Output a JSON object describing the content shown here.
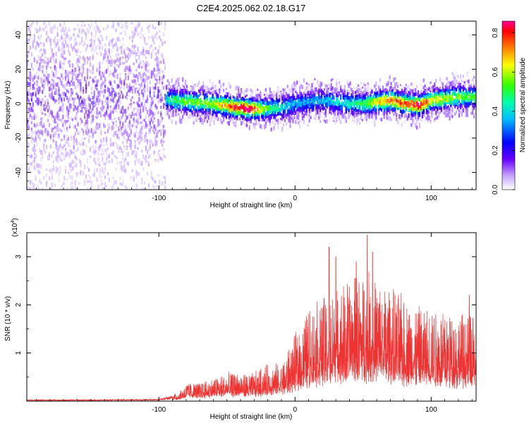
{
  "figure": {
    "title": "C2E4.2025.062.02.18.G17"
  },
  "chart_data": [
    {
      "type": "heatmap",
      "title": "C2E4.2025.062.02.18.G17",
      "xlabel": "Height of straight line (km)",
      "ylabel": "Frequency (Hz)",
      "xlim": [
        -197,
        133
      ],
      "ylim": [
        -50,
        48
      ],
      "xticks": [
        -100,
        0,
        100
      ],
      "yticks": [
        -40,
        -20,
        0,
        20,
        40
      ],
      "grid": false,
      "colorbar": {
        "label": "Normalized spectral amplitude",
        "range": [
          0,
          0.86
        ],
        "ticks": [
          "0.0",
          "0.2",
          "0.4",
          "0.6",
          "0.8"
        ],
        "colormap": [
          "#ffffff",
          "#6600ff",
          "#0000ff",
          "#00ffff",
          "#00ff00",
          "#ffff00",
          "#ff0000",
          "#ff0099"
        ]
      },
      "ridge": {
        "x": [
          -197,
          -150,
          -100,
          -90,
          -75,
          -60,
          -45,
          -35,
          -22,
          -10,
          0,
          10,
          20,
          30,
          40,
          50,
          60,
          70,
          80,
          90,
          100,
          110,
          120,
          133
        ],
        "y": [
          3,
          3,
          3,
          2,
          1,
          0,
          -2,
          -3,
          -3,
          -2,
          0,
          1,
          2,
          1,
          0,
          0,
          1,
          2,
          0,
          -1,
          2,
          3,
          4,
          4
        ],
        "peak_amplitude": [
          0.15,
          0.15,
          0.2,
          0.45,
          0.5,
          0.55,
          0.75,
          0.85,
          0.5,
          0.35,
          0.3,
          0.3,
          0.3,
          0.35,
          0.4,
          0.45,
          0.6,
          0.7,
          0.7,
          0.8,
          0.6,
          0.55,
          0.5,
          0.45
        ]
      }
    },
    {
      "type": "line",
      "xlabel": "Height of straight line (km)",
      "ylabel": "SNR (10 * v/v)",
      "y_multiplier": "(x10^4)",
      "xlim": [
        -197,
        133
      ],
      "ylim": [
        0,
        3.5
      ],
      "xticks": [
        -100,
        0,
        100
      ],
      "yticks": [
        1,
        2,
        3
      ],
      "grid": false,
      "color": "#ee3333",
      "series": [
        {
          "x": [
            -197,
            -150,
            -100,
            -85,
            -80,
            -70,
            -60,
            -50,
            -40,
            -30,
            -20,
            -10,
            0,
            10,
            20,
            30,
            40,
            50,
            60,
            70,
            80,
            90,
            100,
            110,
            120,
            133
          ],
          "y": [
            0.02,
            0.02,
            0.03,
            0.1,
            0.2,
            0.2,
            0.25,
            0.3,
            0.3,
            0.3,
            0.4,
            0.4,
            0.7,
            1.0,
            1.1,
            1.2,
            1.3,
            1.4,
            1.3,
            1.2,
            1.1,
            1.0,
            1.0,
            1.0,
            0.95,
            0.9
          ],
          "peaks": [
            {
              "x": 25,
              "y": 3.2
            },
            {
              "x": 30,
              "y": 3.0
            },
            {
              "x": 45,
              "y": 2.9
            },
            {
              "x": 53,
              "y": 3.45
            },
            {
              "x": 57,
              "y": 3.1
            },
            {
              "x": 128,
              "y": 2.2
            }
          ]
        }
      ]
    }
  ]
}
